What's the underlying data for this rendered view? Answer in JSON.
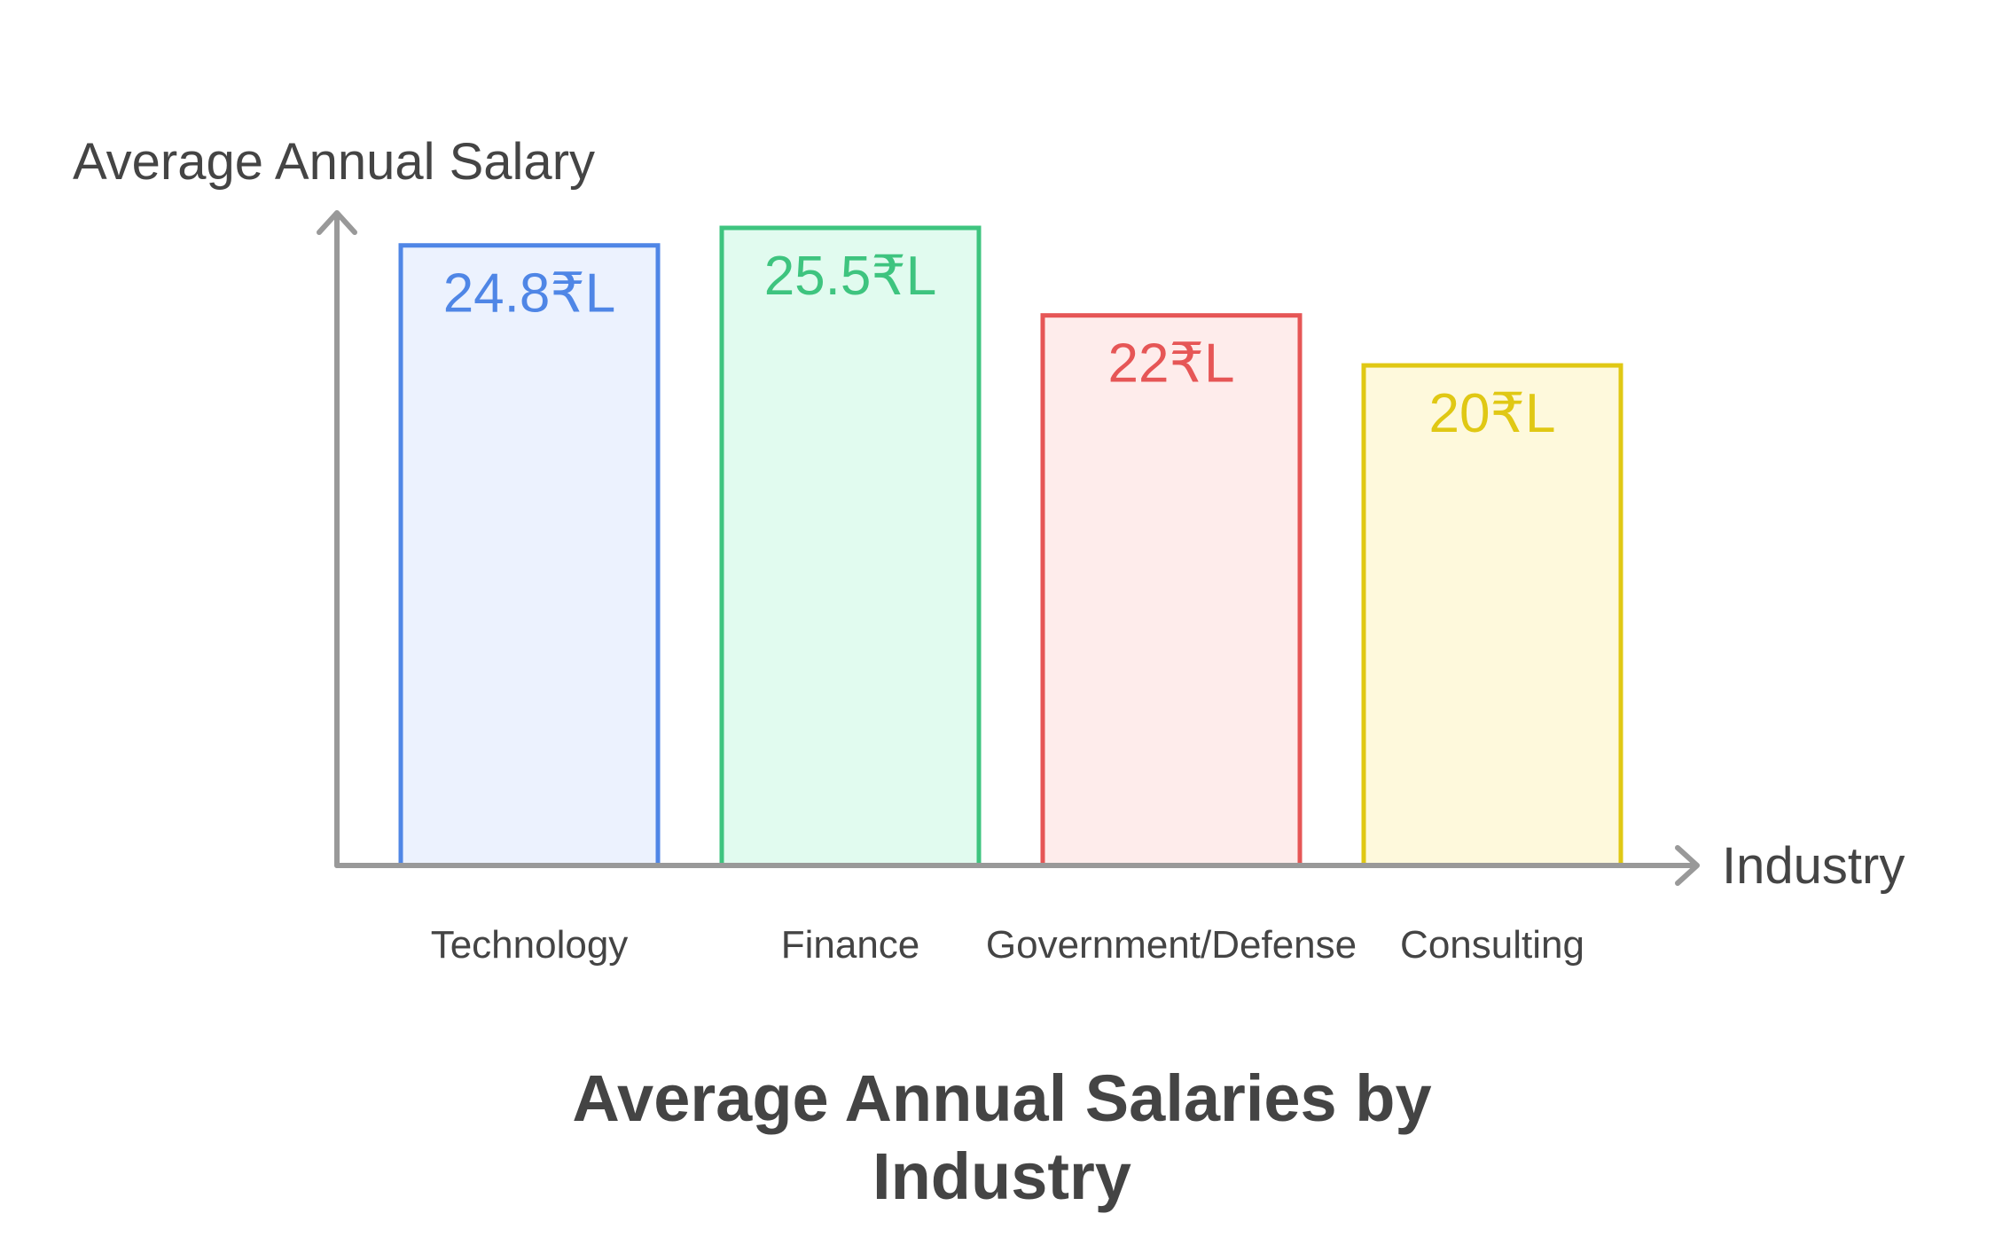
{
  "chart_data": {
    "type": "bar",
    "title": "Average Annual Salaries by Industry",
    "title_lines": [
      "Average Annual Salaries by",
      "Industry"
    ],
    "xlabel": "Industry",
    "ylabel": "Average Annual Salary",
    "categories": [
      "Technology",
      "Finance",
      "Government/Defense",
      "Consulting"
    ],
    "values": [
      24.8,
      25.5,
      22,
      20
    ],
    "value_labels": [
      "24.8₹L",
      "25.5₹L",
      "22₹L",
      "20₹L"
    ],
    "unit": "₹L",
    "ylim": [
      0,
      25.5
    ],
    "grid": false,
    "legend": "none",
    "colors": {
      "stroke": [
        "#4f86e6",
        "#3ec47f",
        "#e65656",
        "#e0c814"
      ],
      "fill": [
        "#ecf2fe",
        "#e1fbef",
        "#feeceb",
        "#fef9dc"
      ],
      "axis": "#999999",
      "text": "#444444"
    }
  }
}
